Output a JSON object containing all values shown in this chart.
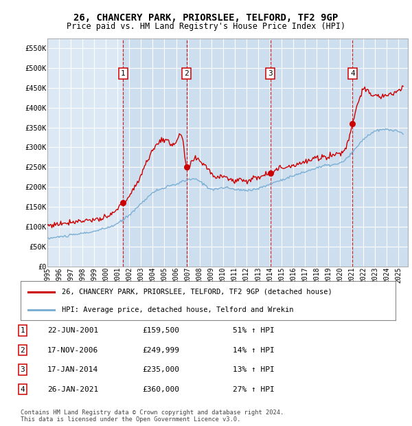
{
  "title": "26, CHANCERY PARK, PRIORSLEE, TELFORD, TF2 9GP",
  "subtitle": "Price paid vs. HM Land Registry's House Price Index (HPI)",
  "background_color": "#dce9f5",
  "outer_bg_color": "#ffffff",
  "grid_color": "#ffffff",
  "red_line_color": "#cc0000",
  "blue_line_color": "#7bafd4",
  "sale_marker_color": "#cc0000",
  "ylim": [
    0,
    575000
  ],
  "yticks": [
    0,
    50000,
    100000,
    150000,
    200000,
    250000,
    300000,
    350000,
    400000,
    450000,
    500000,
    550000
  ],
  "ytick_labels": [
    "£0",
    "£50K",
    "£100K",
    "£150K",
    "£200K",
    "£250K",
    "£300K",
    "£350K",
    "£400K",
    "£450K",
    "£500K",
    "£550K"
  ],
  "xlim_start": 1995.0,
  "xlim_end": 2025.8,
  "xtick_years": [
    1995,
    1996,
    1997,
    1998,
    1999,
    2000,
    2001,
    2002,
    2003,
    2004,
    2005,
    2006,
    2007,
    2008,
    2009,
    2010,
    2011,
    2012,
    2013,
    2014,
    2015,
    2016,
    2017,
    2018,
    2019,
    2020,
    2021,
    2022,
    2023,
    2024,
    2025
  ],
  "sale_dates": [
    2001.47,
    2006.88,
    2014.04,
    2021.07
  ],
  "sale_prices": [
    159500,
    249999,
    235000,
    360000
  ],
  "sale_labels": [
    "1",
    "2",
    "3",
    "4"
  ],
  "legend_red_label": "26, CHANCERY PARK, PRIORSLEE, TELFORD, TF2 9GP (detached house)",
  "legend_blue_label": "HPI: Average price, detached house, Telford and Wrekin",
  "table_rows": [
    {
      "num": "1",
      "date": "22-JUN-2001",
      "price": "£159,500",
      "change": "51% ↑ HPI"
    },
    {
      "num": "2",
      "date": "17-NOV-2006",
      "price": "£249,999",
      "change": "14% ↑ HPI"
    },
    {
      "num": "3",
      "date": "17-JAN-2014",
      "price": "£235,000",
      "change": "13% ↑ HPI"
    },
    {
      "num": "4",
      "date": "26-JAN-2021",
      "price": "£360,000",
      "change": "27% ↑ HPI"
    }
  ],
  "footnote": "Contains HM Land Registry data © Crown copyright and database right 2024.\nThis data is licensed under the Open Government Licence v3.0."
}
